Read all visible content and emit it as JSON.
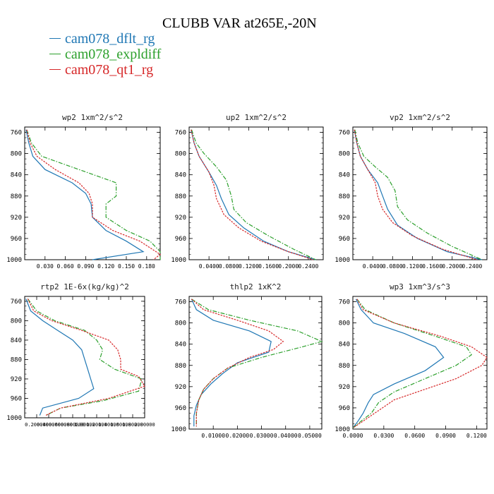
{
  "page": {
    "title": "CLUBB VAR at265E,-20N"
  },
  "colors": {
    "series": [
      "#1f77b4",
      "#2ca02c",
      "#d62728"
    ]
  },
  "chart_data": [
    {
      "type": "line",
      "title": "wp2  1xm^2/s^2",
      "ylim": [
        1000,
        750
      ],
      "y_ticks": [
        760,
        800,
        840,
        880,
        920,
        960,
        1000
      ],
      "x_ticks": [
        "0.030",
        "0.060",
        "0.090",
        "0.120",
        "0.150",
        "0.180"
      ],
      "xlim": [
        0.0,
        0.2
      ],
      "x_tick_values": [
        0.03,
        0.06,
        0.09,
        0.12,
        0.15,
        0.18
      ],
      "series": [
        {
          "name": "cam078_dflt_rg",
          "points": [
            [
              0.002,
              755
            ],
            [
              0.006,
              780
            ],
            [
              0.012,
              805
            ],
            [
              0.03,
              830
            ],
            [
              0.07,
              855
            ],
            [
              0.09,
              875
            ],
            [
              0.098,
              895
            ],
            [
              0.1,
              920
            ],
            [
              0.12,
              945
            ],
            [
              0.15,
              965
            ],
            [
              0.175,
              985
            ],
            [
              0.1,
              1000
            ]
          ]
        },
        {
          "name": "cam078_expldiff",
          "points": [
            [
              0.003,
              755
            ],
            [
              0.01,
              780
            ],
            [
              0.025,
              805
            ],
            [
              0.08,
              830
            ],
            [
              0.135,
              855
            ],
            [
              0.135,
              880
            ],
            [
              0.12,
              895
            ],
            [
              0.12,
              920
            ],
            [
              0.15,
              945
            ],
            [
              0.185,
              965
            ],
            [
              0.2,
              985
            ],
            [
              0.2,
              1000
            ]
          ]
        },
        {
          "name": "cam078_qt1_rg",
          "points": [
            [
              0.003,
              755
            ],
            [
              0.008,
              780
            ],
            [
              0.018,
              805
            ],
            [
              0.045,
              830
            ],
            [
              0.08,
              855
            ],
            [
              0.095,
              875
            ],
            [
              0.1,
              895
            ],
            [
              0.1,
              920
            ],
            [
              0.13,
              945
            ],
            [
              0.17,
              965
            ],
            [
              0.2,
              990
            ],
            [
              0.19,
              1000
            ]
          ]
        }
      ]
    },
    {
      "type": "line",
      "title": "up2  1xm^2/s^2",
      "ylim": [
        1000,
        750
      ],
      "y_ticks": [
        760,
        800,
        840,
        880,
        920,
        960,
        1000
      ],
      "x_ticks": [
        "0.0400",
        "0.0800",
        "0.1200",
        "0.1600",
        "0.2000",
        "0.2400"
      ],
      "xlim": [
        0.0,
        0.27
      ],
      "x_tick_values": [
        0.04,
        0.08,
        0.12,
        0.16,
        0.2,
        0.24
      ],
      "series": [
        {
          "name": "cam078_dflt_rg",
          "points": [
            [
              0.004,
              755
            ],
            [
              0.01,
              780
            ],
            [
              0.02,
              805
            ],
            [
              0.04,
              835
            ],
            [
              0.055,
              860
            ],
            [
              0.065,
              885
            ],
            [
              0.08,
              915
            ],
            [
              0.11,
              940
            ],
            [
              0.15,
              965
            ],
            [
              0.2,
              985
            ],
            [
              0.255,
              1000
            ]
          ]
        },
        {
          "name": "cam078_expldiff",
          "points": [
            [
              0.005,
              755
            ],
            [
              0.014,
              780
            ],
            [
              0.03,
              800
            ],
            [
              0.055,
              825
            ],
            [
              0.075,
              850
            ],
            [
              0.085,
              880
            ],
            [
              0.09,
              905
            ],
            [
              0.115,
              930
            ],
            [
              0.16,
              955
            ],
            [
              0.21,
              980
            ],
            [
              0.255,
              1000
            ]
          ]
        },
        {
          "name": "cam078_qt1_rg",
          "points": [
            [
              0.004,
              755
            ],
            [
              0.01,
              780
            ],
            [
              0.02,
              805
            ],
            [
              0.04,
              835
            ],
            [
              0.05,
              860
            ],
            [
              0.055,
              885
            ],
            [
              0.07,
              915
            ],
            [
              0.1,
              940
            ],
            [
              0.145,
              965
            ],
            [
              0.2,
              985
            ],
            [
              0.25,
              1000
            ]
          ]
        }
      ]
    },
    {
      "type": "line",
      "title": "vp2  1xm^2/s^2",
      "ylim": [
        1000,
        750
      ],
      "y_ticks": [
        760,
        800,
        840,
        880,
        920,
        960,
        1000
      ],
      "x_ticks": [
        "0.0400",
        "0.0800",
        "0.1200",
        "0.1600",
        "0.2000",
        "0.2400"
      ],
      "xlim": [
        0.0,
        0.27
      ],
      "x_tick_values": [
        0.04,
        0.08,
        0.12,
        0.16,
        0.2,
        0.24
      ],
      "series": [
        {
          "name": "cam078_dflt_rg",
          "points": [
            [
              0.003,
              755
            ],
            [
              0.008,
              780
            ],
            [
              0.015,
              805
            ],
            [
              0.03,
              830
            ],
            [
              0.05,
              855
            ],
            [
              0.06,
              880
            ],
            [
              0.07,
              905
            ],
            [
              0.09,
              935
            ],
            [
              0.13,
              960
            ],
            [
              0.19,
              985
            ],
            [
              0.26,
              1000
            ]
          ]
        },
        {
          "name": "cam078_expldiff",
          "points": [
            [
              0.004,
              755
            ],
            [
              0.01,
              780
            ],
            [
              0.022,
              805
            ],
            [
              0.045,
              825
            ],
            [
              0.07,
              845
            ],
            [
              0.085,
              870
            ],
            [
              0.09,
              900
            ],
            [
              0.11,
              925
            ],
            [
              0.15,
              950
            ],
            [
              0.2,
              975
            ],
            [
              0.26,
              1000
            ]
          ]
        },
        {
          "name": "cam078_qt1_rg",
          "points": [
            [
              0.003,
              755
            ],
            [
              0.008,
              780
            ],
            [
              0.015,
              805
            ],
            [
              0.03,
              830
            ],
            [
              0.045,
              855
            ],
            [
              0.05,
              880
            ],
            [
              0.06,
              905
            ],
            [
              0.08,
              930
            ],
            [
              0.12,
              955
            ],
            [
              0.18,
              980
            ],
            [
              0.25,
              1000
            ]
          ]
        }
      ]
    },
    {
      "type": "line",
      "title": "rtp2  1E-6x(kg/kg)^2",
      "ylim": [
        1000,
        750
      ],
      "y_ticks": [
        760,
        800,
        840,
        880,
        920,
        960,
        1000
      ],
      "x_ticks": [
        "0.200000",
        "0.400000",
        "0.600000",
        "0.800000",
        "1.00000",
        "1.20000",
        "1.40000",
        "1.60000",
        "1.80000",
        "2.00000"
      ],
      "xlim": [
        0.0,
        2.0
      ],
      "x_tick_values": [
        0.2,
        0.4,
        0.6,
        0.8,
        1.0,
        1.2,
        1.4,
        1.6,
        1.8,
        2.0
      ],
      "series": [
        {
          "name": "cam078_dflt_rg",
          "points": [
            [
              0.02,
              755
            ],
            [
              0.1,
              780
            ],
            [
              0.3,
              800
            ],
            [
              0.55,
              820
            ],
            [
              0.8,
              840
            ],
            [
              0.95,
              860
            ],
            [
              1.0,
              880
            ],
            [
              1.05,
              900
            ],
            [
              1.1,
              920
            ],
            [
              1.15,
              940
            ],
            [
              0.9,
              960
            ],
            [
              0.3,
              980
            ],
            [
              0.25,
              995
            ]
          ]
        },
        {
          "name": "cam078_expldiff",
          "points": [
            [
              0.05,
              755
            ],
            [
              0.2,
              780
            ],
            [
              0.5,
              800
            ],
            [
              1.0,
              820
            ],
            [
              1.2,
              840
            ],
            [
              1.3,
              860
            ],
            [
              1.25,
              880
            ],
            [
              1.5,
              900
            ],
            [
              1.95,
              920
            ],
            [
              1.9,
              945
            ],
            [
              1.3,
              965
            ],
            [
              0.6,
              980
            ],
            [
              0.35,
              995
            ]
          ]
        },
        {
          "name": "cam078_qt1_rg",
          "points": [
            [
              0.05,
              755
            ],
            [
              0.15,
              780
            ],
            [
              0.45,
              800
            ],
            [
              0.95,
              820
            ],
            [
              1.4,
              840
            ],
            [
              1.55,
              860
            ],
            [
              1.6,
              880
            ],
            [
              1.6,
              900
            ],
            [
              1.9,
              915
            ],
            [
              2.0,
              935
            ],
            [
              1.4,
              960
            ],
            [
              0.6,
              980
            ],
            [
              0.35,
              995
            ]
          ]
        }
      ]
    },
    {
      "type": "line",
      "title": "thlp2  1xK^2",
      "ylim": [
        1000,
        750
      ],
      "y_ticks": [
        760,
        800,
        840,
        880,
        920,
        960,
        1000
      ],
      "x_ticks": [
        "0.01000",
        "0.02000",
        "0.03000",
        "0.04000",
        "0.05000"
      ],
      "xlim": [
        0.0,
        0.055
      ],
      "x_tick_values": [
        0.01,
        0.02,
        0.03,
        0.04,
        0.05
      ],
      "series": [
        {
          "name": "cam078_dflt_rg",
          "points": [
            [
              0.001,
              755
            ],
            [
              0.003,
              775
            ],
            [
              0.01,
              795
            ],
            [
              0.025,
              815
            ],
            [
              0.034,
              835
            ],
            [
              0.033,
              855
            ],
            [
              0.02,
              875
            ],
            [
              0.014,
              895
            ],
            [
              0.009,
              915
            ],
            [
              0.005,
              935
            ],
            [
              0.003,
              955
            ],
            [
              0.002,
              975
            ],
            [
              0.002,
              995
            ]
          ]
        },
        {
          "name": "cam078_expldiff",
          "points": [
            [
              0.001,
              755
            ],
            [
              0.008,
              775
            ],
            [
              0.025,
              795
            ],
            [
              0.045,
              815
            ],
            [
              0.055,
              835
            ],
            [
              0.047,
              845
            ],
            [
              0.03,
              865
            ],
            [
              0.016,
              885
            ],
            [
              0.01,
              905
            ],
            [
              0.006,
              925
            ],
            [
              0.004,
              945
            ],
            [
              0.003,
              970
            ],
            [
              0.003,
              995
            ]
          ]
        },
        {
          "name": "cam078_qt1_rg",
          "points": [
            [
              0.001,
              755
            ],
            [
              0.006,
              775
            ],
            [
              0.02,
              795
            ],
            [
              0.033,
              815
            ],
            [
              0.039,
              835
            ],
            [
              0.035,
              850
            ],
            [
              0.025,
              865
            ],
            [
              0.016,
              885
            ],
            [
              0.01,
              905
            ],
            [
              0.006,
              925
            ],
            [
              0.004,
              945
            ],
            [
              0.003,
              970
            ],
            [
              0.003,
              995
            ]
          ]
        }
      ]
    },
    {
      "type": "line",
      "title": "wp3  1xm^3/s^3",
      "ylim": [
        1000,
        750
      ],
      "y_ticks": [
        760,
        800,
        840,
        880,
        920,
        960,
        1000
      ],
      "x_ticks": [
        "0.0000",
        "0.0300",
        "0.0600",
        "0.0900",
        "0.1200"
      ],
      "xlim": [
        0.0,
        0.13
      ],
      "x_tick_values": [
        0.0,
        0.03,
        0.06,
        0.09,
        0.12
      ],
      "series": [
        {
          "name": "cam078_dflt_rg",
          "points": [
            [
              0.003,
              755
            ],
            [
              0.008,
              775
            ],
            [
              0.02,
              800
            ],
            [
              0.05,
              820
            ],
            [
              0.08,
              845
            ],
            [
              0.088,
              865
            ],
            [
              0.07,
              890
            ],
            [
              0.04,
              915
            ],
            [
              0.02,
              935
            ],
            [
              0.015,
              950
            ],
            [
              0.01,
              970
            ],
            [
              0.005,
              985
            ],
            [
              0.0,
              998
            ]
          ]
        },
        {
          "name": "cam078_expldiff",
          "points": [
            [
              0.004,
              755
            ],
            [
              0.012,
              775
            ],
            [
              0.04,
              800
            ],
            [
              0.08,
              825
            ],
            [
              0.11,
              845
            ],
            [
              0.115,
              860
            ],
            [
              0.1,
              880
            ],
            [
              0.07,
              905
            ],
            [
              0.04,
              930
            ],
            [
              0.025,
              950
            ],
            [
              0.018,
              970
            ],
            [
              0.008,
              985
            ],
            [
              0.0,
              998
            ]
          ]
        },
        {
          "name": "cam078_qt1_rg",
          "points": [
            [
              0.004,
              755
            ],
            [
              0.01,
              775
            ],
            [
              0.04,
              800
            ],
            [
              0.085,
              825
            ],
            [
              0.115,
              845
            ],
            [
              0.13,
              865
            ],
            [
              0.125,
              880
            ],
            [
              0.1,
              905
            ],
            [
              0.07,
              925
            ],
            [
              0.04,
              945
            ],
            [
              0.025,
              965
            ],
            [
              0.01,
              985
            ],
            [
              0.0,
              998
            ]
          ]
        }
      ]
    }
  ]
}
